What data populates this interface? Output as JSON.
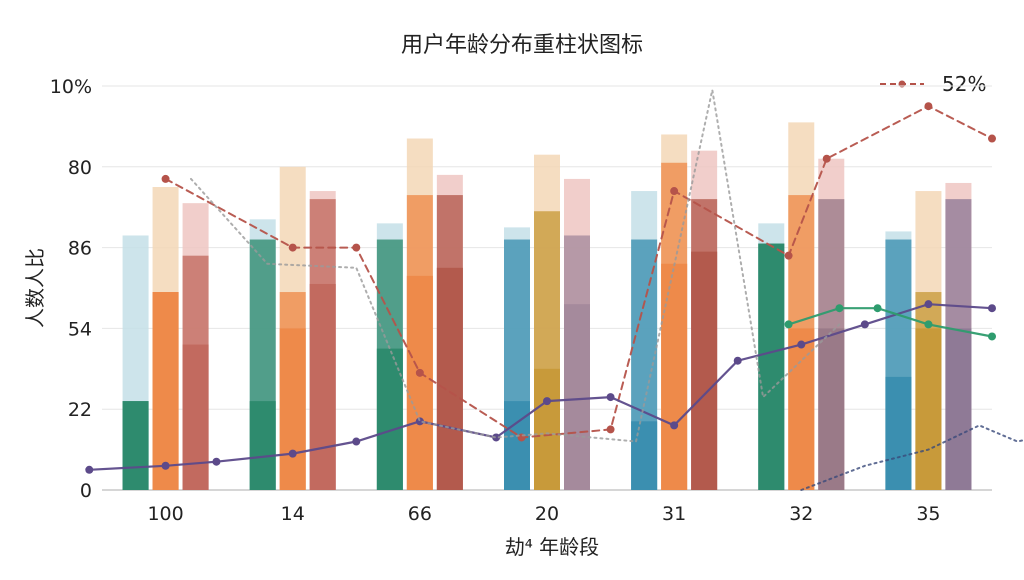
{
  "chart_data": {
    "type": "bar",
    "title": "用户年龄分布重柱状图标",
    "xlabel": "劫⁴ 年龄段",
    "ylabel": "人数人比",
    "y_tick_labels": [
      "0",
      "22",
      "54",
      "86",
      "80",
      "10%"
    ],
    "legend": [
      {
        "label": "52%",
        "color": "#b5534a"
      }
    ],
    "legend_position": "top-right",
    "grid": true,
    "ylim": [
      0,
      100
    ],
    "categories": [
      "100",
      "14",
      "66",
      "20",
      "31",
      "32",
      "35"
    ],
    "bar_series": [
      {
        "color": "#3b8fb0",
        "cap_color": "#c4dfe8",
        "top": [
          63,
          67,
          66,
          65,
          74,
          66,
          64
        ],
        "mid": [
          22,
          62,
          62,
          62,
          62,
          61,
          62
        ],
        "low": [
          22,
          22,
          35,
          22,
          17,
          61,
          28
        ]
      },
      {
        "color": "#ee8a4a",
        "cap_color": "#f3d7b6",
        "top": [
          75,
          80,
          87,
          83,
          88,
          91,
          74
        ],
        "mid": [
          49,
          49,
          73,
          69,
          81,
          73,
          49
        ],
        "low": [
          49,
          40,
          53,
          30,
          56,
          40,
          40
        ]
      },
      {
        "color": "#c26a5f",
        "cap_color": "#efc6c2",
        "top": [
          71,
          74,
          78,
          77,
          84,
          82,
          76
        ],
        "mid": [
          58,
          72,
          73,
          63,
          72,
          72,
          72
        ],
        "low": [
          36,
          51,
          55,
          46,
          59,
          40,
          40
        ]
      }
    ],
    "bar_colors_override": [
      [
        "#2e8b6e",
        "#ee8a4a",
        "#c26a5f"
      ],
      [
        "#2e8b6e",
        "#ee8a4a",
        "#c26a5f"
      ],
      [
        "#2e8b6e",
        "#ee8a4a",
        "#b35a4d"
      ],
      [
        "#3b8fb0",
        "#c89a3a",
        "#a58a9c"
      ],
      [
        "#3b8fb0",
        "#ee8a4a",
        "#b35a4d"
      ],
      [
        "#2e8b6e",
        "#ee8a4a",
        "#9a7a88"
      ],
      [
        "#3b8fb0",
        "#c89a3a",
        "#8f7a96"
      ]
    ],
    "series": [
      {
        "name": "52%",
        "color": "#b5534a",
        "style": "dashed",
        "points": [
          [
            0.0,
            77
          ],
          [
            1.0,
            60
          ],
          [
            1.5,
            60
          ],
          [
            2.0,
            29
          ],
          [
            2.8,
            13
          ],
          [
            3.5,
            15
          ],
          [
            4.0,
            74
          ],
          [
            4.9,
            58
          ],
          [
            5.2,
            82
          ],
          [
            6.0,
            95
          ],
          [
            6.5,
            87
          ]
        ]
      },
      {
        "name": "",
        "color": "#5c4a8a",
        "style": "solid",
        "points": [
          [
            -0.6,
            5
          ],
          [
            0.0,
            6
          ],
          [
            0.4,
            7
          ],
          [
            1.0,
            9
          ],
          [
            1.5,
            12
          ],
          [
            2.0,
            17
          ],
          [
            2.6,
            13
          ],
          [
            3.0,
            22
          ],
          [
            3.5,
            23
          ],
          [
            4.0,
            16
          ],
          [
            4.5,
            32
          ],
          [
            5.0,
            36
          ],
          [
            5.5,
            41
          ],
          [
            6.0,
            46
          ],
          [
            6.5,
            45
          ]
        ]
      },
      {
        "name": "",
        "color": "#2e9c6e",
        "style": "solid",
        "points": [
          [
            4.9,
            41
          ],
          [
            5.3,
            45
          ],
          [
            5.6,
            45
          ],
          [
            6.0,
            41
          ],
          [
            6.5,
            38
          ]
        ]
      },
      {
        "name": "",
        "color": "#9a9a9a",
        "style": "dotted",
        "points": [
          [
            0.2,
            77
          ],
          [
            0.8,
            56
          ],
          [
            1.5,
            55
          ],
          [
            2.0,
            17
          ],
          [
            2.6,
            13
          ],
          [
            3.0,
            14
          ],
          [
            3.7,
            12
          ],
          [
            4.3,
            99
          ],
          [
            4.7,
            23
          ],
          [
            5.3,
            41
          ]
        ]
      },
      {
        "name": "",
        "color": "#3a4a7a",
        "style": "dotted",
        "points": [
          [
            5.0,
            0
          ],
          [
            5.5,
            6
          ],
          [
            6.0,
            10
          ],
          [
            6.4,
            16
          ],
          [
            6.7,
            12
          ],
          [
            7.0,
            14
          ]
        ]
      }
    ]
  }
}
